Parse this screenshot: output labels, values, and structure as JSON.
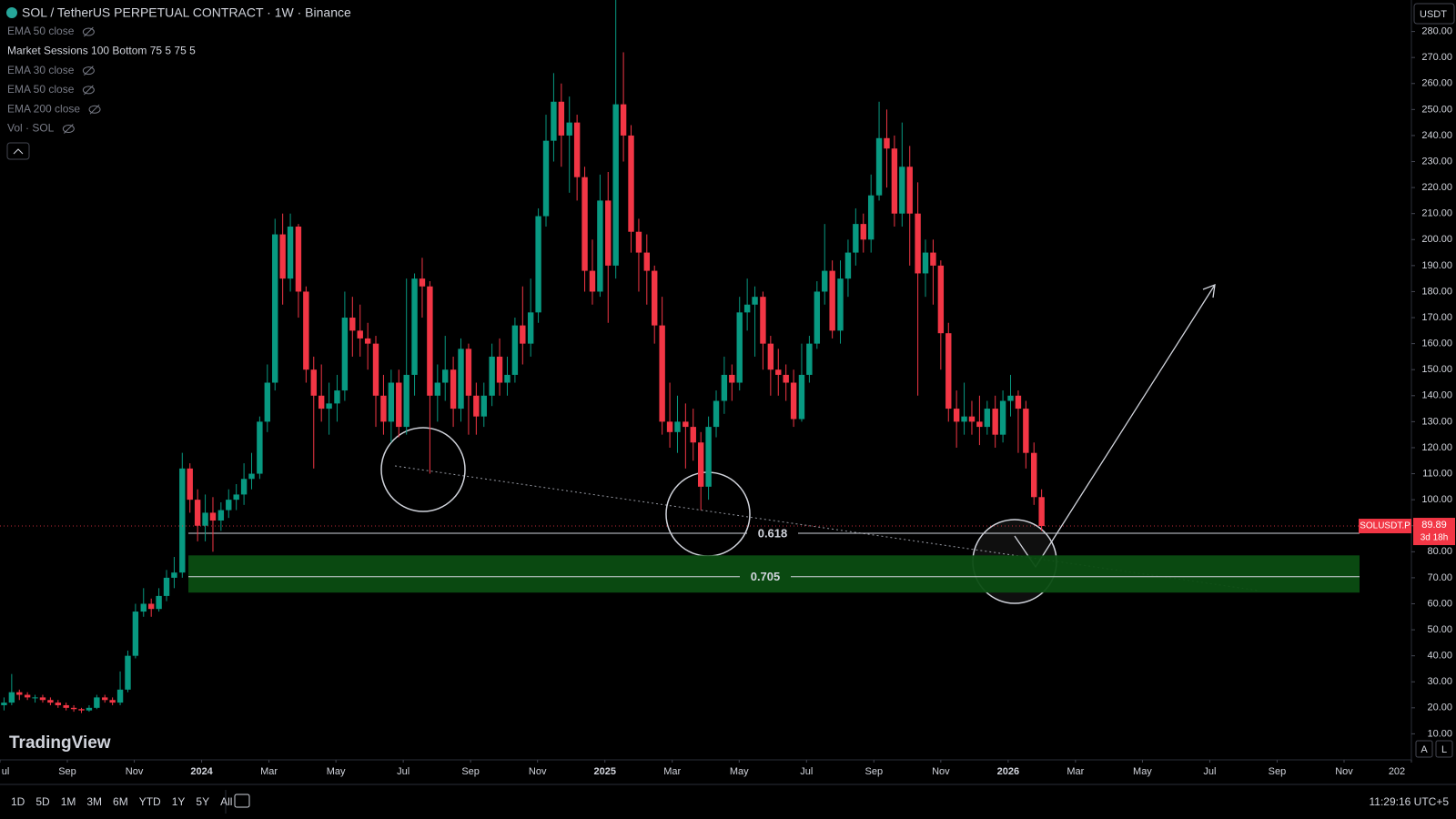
{
  "header": {
    "title": "SOL / TetherUS PERPETUAL CONTRACT · 1W · Binance",
    "indicators": [
      "EMA 50 close",
      "Market Sessions 100 Bottom 75 5 75 5",
      "EMA 30 close",
      "EMA 50 close",
      "EMA 200 close",
      "Vol · SOL"
    ],
    "currency": "USDT"
  },
  "chart_data": {
    "type": "candlestick",
    "x": [
      2023.51,
      2023.529,
      2023.548,
      2023.568,
      2023.587,
      2023.606,
      2023.625,
      2023.644,
      2023.664,
      2023.683,
      2023.702,
      2023.721,
      2023.74,
      2023.76,
      2023.779,
      2023.798,
      2023.817,
      2023.836,
      2023.856,
      2023.875,
      2023.894,
      2023.913,
      2023.932,
      2023.952,
      2023.971,
      2023.99,
      2024.009,
      2024.028,
      2024.048,
      2024.067,
      2024.086,
      2024.105,
      2024.124,
      2024.144,
      2024.163,
      2024.182,
      2024.201,
      2024.22,
      2024.24,
      2024.259,
      2024.278,
      2024.297,
      2024.316,
      2024.336,
      2024.355,
      2024.374,
      2024.393,
      2024.412,
      2024.432,
      2024.451,
      2024.47,
      2024.489,
      2024.508,
      2024.528,
      2024.547,
      2024.566,
      2024.585,
      2024.604,
      2024.624,
      2024.643,
      2024.662,
      2024.681,
      2024.7,
      2024.72,
      2024.739,
      2024.758,
      2024.777,
      2024.796,
      2024.816,
      2024.835,
      2024.854,
      2024.873,
      2024.892,
      2024.912,
      2024.931,
      2024.95,
      2024.969,
      2024.988,
      2025.008,
      2025.027,
      2025.046,
      2025.065,
      2025.084,
      2025.104,
      2025.123,
      2025.142,
      2025.161,
      2025.18,
      2025.2,
      2025.219,
      2025.238,
      2025.257,
      2025.276,
      2025.296,
      2025.315,
      2025.334,
      2025.353,
      2025.372,
      2025.392,
      2025.411,
      2025.43,
      2025.449,
      2025.468,
      2025.488,
      2025.507,
      2025.526,
      2025.545,
      2025.564,
      2025.584,
      2025.603,
      2025.622,
      2025.641,
      2025.66,
      2025.68,
      2025.699,
      2025.718,
      2025.737,
      2025.756,
      2025.776,
      2025.795,
      2025.814,
      2025.833,
      2025.852,
      2025.872,
      2025.891,
      2025.91,
      2025.929,
      2025.948,
      2025.968,
      2025.987,
      2026.006,
      2026.025,
      2026.044,
      2026.064,
      2026.083
    ],
    "open": [
      21,
      22,
      26,
      25,
      24,
      24,
      23,
      22,
      21,
      20,
      19.5,
      19,
      20,
      24,
      23,
      22,
      27,
      40,
      57,
      60,
      58,
      63,
      70,
      72,
      112,
      100,
      90,
      95,
      92,
      96,
      100,
      102,
      108,
      110,
      130,
      145,
      202,
      185,
      205,
      180,
      150,
      140,
      135,
      137,
      142,
      170,
      165,
      162,
      160,
      140,
      130,
      145,
      128,
      148,
      185,
      182,
      140,
      145,
      150,
      135,
      158,
      140,
      132,
      140,
      155,
      145,
      148,
      167,
      160,
      172,
      209,
      238,
      253,
      240,
      245,
      224,
      188,
      180,
      215,
      190,
      252,
      240,
      203,
      195,
      188,
      167,
      130,
      126,
      130,
      128,
      122,
      105,
      128,
      138,
      148,
      145,
      172,
      175,
      178,
      160,
      150,
      148,
      145,
      131,
      148,
      160,
      180,
      188,
      165,
      185,
      195,
      206,
      200,
      217,
      239,
      235,
      210,
      228,
      210,
      187,
      195,
      190,
      164,
      135,
      130,
      132,
      130,
      128,
      135,
      125,
      138,
      140,
      135,
      118,
      101
    ],
    "high": [
      24,
      33,
      27,
      26,
      25,
      25,
      24,
      23,
      22,
      21,
      20,
      21,
      25,
      25,
      24,
      34,
      42,
      60,
      66,
      62,
      66,
      73,
      78,
      118,
      114,
      104,
      102,
      101,
      99,
      104,
      106,
      114,
      118,
      132,
      152,
      208,
      210,
      210,
      206,
      182,
      155,
      152,
      145,
      148,
      180,
      178,
      175,
      168,
      163,
      148,
      150,
      150,
      185,
      187,
      193,
      184,
      152,
      163,
      155,
      162,
      160,
      145,
      145,
      160,
      162,
      155,
      170,
      182,
      185,
      212,
      248,
      264,
      260,
      255,
      248,
      228,
      200,
      225,
      226,
      295,
      272,
      244,
      208,
      202,
      190,
      178,
      145,
      140,
      137,
      135,
      126,
      132,
      142,
      155,
      152,
      178,
      185,
      182,
      180,
      163,
      158,
      152,
      150,
      160,
      163,
      184,
      206,
      192,
      192,
      200,
      212,
      210,
      225,
      253,
      250,
      240,
      245,
      236,
      222,
      200,
      200,
      192,
      168,
      142,
      145,
      138,
      140,
      138,
      140,
      142,
      148,
      142,
      138,
      122,
      104
    ],
    "low": [
      19,
      21,
      23,
      23,
      22,
      22,
      21,
      20,
      19,
      18.5,
      18,
      18.5,
      19.5,
      22,
      21,
      21,
      26,
      39,
      55,
      55,
      57,
      61,
      66,
      70,
      95,
      84,
      84,
      80,
      88,
      93,
      96,
      98,
      104,
      108,
      126,
      142,
      175,
      180,
      170,
      145,
      112,
      130,
      125,
      130,
      138,
      155,
      155,
      150,
      128,
      125,
      122,
      124,
      125,
      140,
      170,
      110,
      130,
      138,
      128,
      130,
      125,
      125,
      128,
      136,
      140,
      140,
      145,
      152,
      155,
      168,
      205,
      230,
      228,
      218,
      215,
      180,
      175,
      178,
      168,
      185,
      230,
      195,
      180,
      175,
      160,
      125,
      120,
      118,
      112,
      115,
      96,
      100,
      124,
      133,
      138,
      142,
      165,
      155,
      150,
      140,
      140,
      138,
      128,
      130,
      145,
      158,
      175,
      162,
      160,
      178,
      190,
      195,
      195,
      215,
      220,
      205,
      205,
      190,
      140,
      178,
      175,
      150,
      130,
      120,
      125,
      125,
      121,
      125,
      120,
      122,
      132,
      118,
      112,
      98,
      88
    ],
    "close": [
      22,
      26,
      25,
      24,
      24,
      23,
      22,
      21,
      20,
      19.5,
      19,
      20,
      24,
      23,
      22,
      27,
      40,
      57,
      60,
      58,
      63,
      70,
      72,
      112,
      100,
      90,
      95,
      92,
      96,
      100,
      102,
      108,
      110,
      130,
      145,
      202,
      185,
      205,
      180,
      150,
      140,
      135,
      137,
      142,
      170,
      165,
      162,
      160,
      140,
      130,
      145,
      128,
      148,
      185,
      182,
      140,
      145,
      150,
      135,
      158,
      140,
      132,
      140,
      155,
      145,
      148,
      167,
      160,
      172,
      209,
      238,
      253,
      240,
      245,
      224,
      188,
      180,
      215,
      190,
      252,
      240,
      203,
      195,
      188,
      167,
      130,
      126,
      130,
      128,
      122,
      105,
      128,
      138,
      148,
      145,
      172,
      175,
      178,
      160,
      150,
      148,
      145,
      131,
      148,
      160,
      180,
      188,
      165,
      185,
      195,
      206,
      200,
      217,
      239,
      235,
      210,
      228,
      210,
      187,
      195,
      190,
      164,
      135,
      130,
      132,
      130,
      128,
      135,
      125,
      138,
      140,
      135,
      118,
      101,
      89.89
    ],
    "up_color": "#089981",
    "down_color": "#f23645",
    "xlim": [
      2023.5,
      2027.0
    ],
    "xticks": [
      {
        "value": 2023.5,
        "label": "ul"
      },
      {
        "value": 2023.667,
        "label": "Sep"
      },
      {
        "value": 2023.833,
        "label": "Nov"
      },
      2024,
      {
        "value": 2024.167,
        "label": "Mar"
      },
      {
        "value": 2024.333,
        "label": "May"
      },
      {
        "value": 2024.5,
        "label": "Jul"
      },
      {
        "value": 2024.667,
        "label": "Sep"
      },
      {
        "value": 2024.833,
        "label": "Nov"
      },
      2025,
      {
        "value": 2025.167,
        "label": "Mar"
      },
      {
        "value": 2025.333,
        "label": "May"
      },
      {
        "value": 2025.5,
        "label": "Jul"
      },
      {
        "value": 2025.667,
        "label": "Sep"
      },
      {
        "value": 2025.833,
        "label": "Nov"
      },
      2026,
      {
        "value": 2026.167,
        "label": "Mar"
      },
      {
        "value": 2026.333,
        "label": "May"
      },
      {
        "value": 2026.5,
        "label": "Jul"
      },
      {
        "value": 2026.667,
        "label": "Sep"
      },
      {
        "value": 2026.833,
        "label": "Nov"
      },
      {
        "value": 2027.0,
        "label": "202"
      }
    ],
    "ylim": [
      0,
      292.1
    ],
    "yticks": [
      {
        "value": 10,
        "label": "10.00"
      },
      {
        "value": 20,
        "label": "20.00"
      },
      {
        "value": 30,
        "label": "30.00"
      },
      {
        "value": 40,
        "label": "40.00"
      },
      {
        "value": 50,
        "label": "50.00"
      },
      {
        "value": 60,
        "label": "60.00"
      },
      {
        "value": 70,
        "label": "70.00"
      },
      {
        "value": 80,
        "label": "80.00"
      },
      {
        "value": 90,
        "label": "90.00"
      },
      {
        "value": 100,
        "label": "100.00"
      },
      {
        "value": 110,
        "label": "110.00"
      },
      {
        "value": 120,
        "label": "120.00"
      },
      {
        "value": 130,
        "label": "130.00"
      },
      {
        "value": 140,
        "label": "140.00"
      },
      {
        "value": 150,
        "label": "150.00"
      },
      {
        "value": 160,
        "label": "160.00"
      },
      {
        "value": 170,
        "label": "170.00"
      },
      {
        "value": 180,
        "label": "180.00"
      },
      {
        "value": 190,
        "label": "190.00"
      },
      {
        "value": 200,
        "label": "200.00"
      },
      {
        "value": 210,
        "label": "210.00"
      },
      {
        "value": 220,
        "label": "220.00"
      },
      {
        "value": 230,
        "label": "230.00"
      },
      {
        "value": 240,
        "label": "240.00"
      },
      {
        "value": 250,
        "label": "250.00"
      },
      {
        "value": 260,
        "label": "260.00"
      },
      {
        "value": 270,
        "label": "270.00"
      },
      {
        "value": 280,
        "label": "280.00"
      }
    ],
    "symbol_label": "SOLUSDT.P",
    "countdown": "3d 18h",
    "fib_levels": [
      {
        "ratio": 0.618,
        "price": 87.1
      },
      {
        "ratio": 0.705,
        "price": 70.4
      }
    ],
    "zone": {
      "low": 64.3,
      "high": 78.6
    }
  },
  "footer": {
    "ranges": [
      "1D",
      "5D",
      "1M",
      "3M",
      "6M",
      "YTD",
      "1Y",
      "5Y",
      "All"
    ],
    "clock": "11:29:16 UTC+5"
  },
  "branding": "TradingView"
}
